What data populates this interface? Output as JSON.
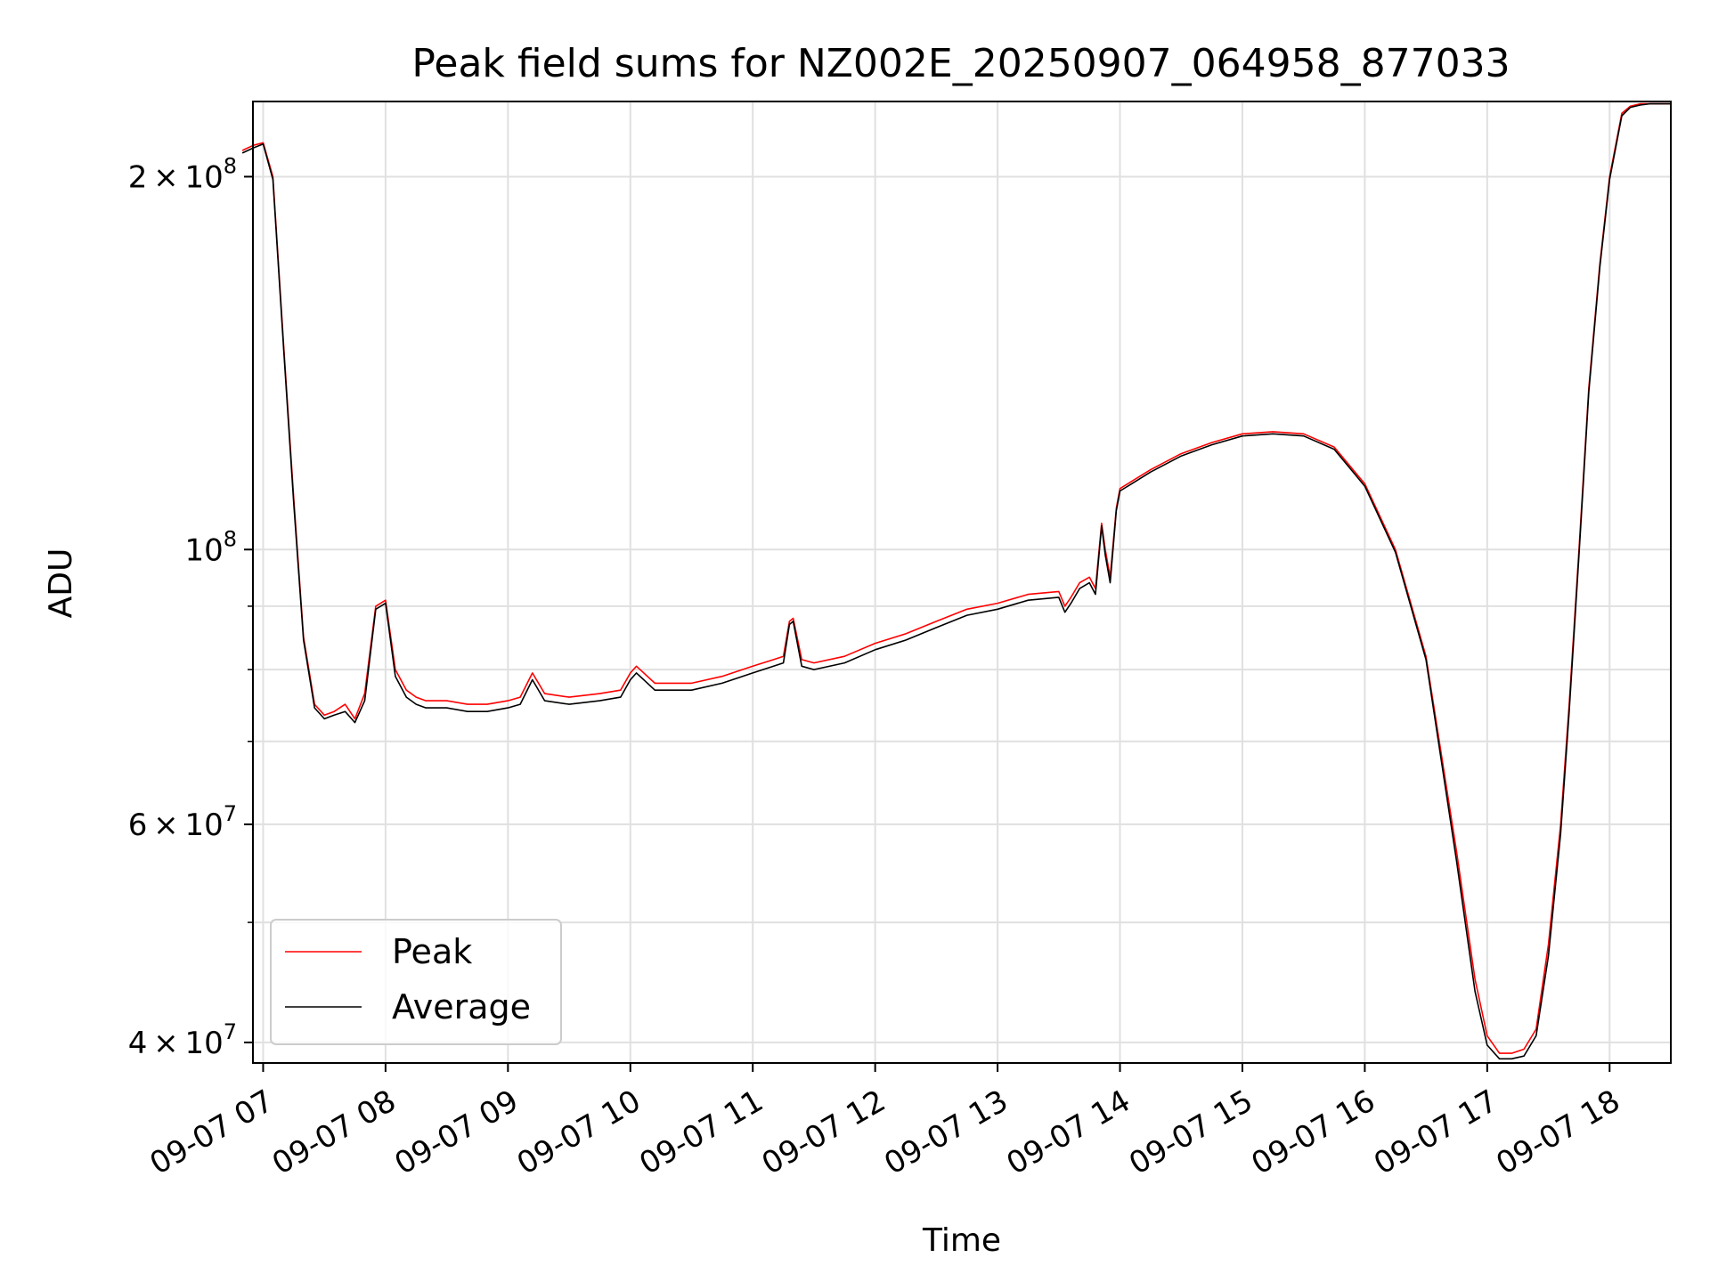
{
  "chart_data": {
    "type": "line",
    "title": "Peak field sums for NZ002E_20250907_064958_877033",
    "xlabel": "Time",
    "ylabel": "ADU",
    "y_scale": "log",
    "xlim": [
      "09-07 06:55",
      "09-07 18:30"
    ],
    "ylim": [
      38500000,
      230000000
    ],
    "grid": true,
    "legend_position": "lower-left",
    "x_ticks": [
      "09-07 07",
      "09-07 08",
      "09-07 09",
      "09-07 10",
      "09-07 11",
      "09-07 12",
      "09-07 13",
      "09-07 14",
      "09-07 15",
      "09-07 16",
      "09-07 17",
      "09-07 18"
    ],
    "x_tick_hours": [
      7,
      8,
      9,
      10,
      11,
      12,
      13,
      14,
      15,
      16,
      17,
      18
    ],
    "y_ticks": [
      {
        "value": 200000000,
        "mantissa": "2",
        "exponent": "8"
      },
      {
        "value": 100000000,
        "mantissa": "",
        "exponent": "8"
      },
      {
        "value": 60000000,
        "mantissa": "6",
        "exponent": "7"
      },
      {
        "value": 40000000,
        "mantissa": "4",
        "exponent": "7"
      }
    ],
    "y_minor_gridlines": [
      50000000,
      70000000,
      80000000,
      90000000
    ],
    "x_unit": "hour of day (09-07)",
    "series": [
      {
        "name": "Peak",
        "color": "#ff0000",
        "x": [
          6.83,
          6.92,
          7.0,
          7.08,
          7.17,
          7.25,
          7.33,
          7.42,
          7.5,
          7.58,
          7.67,
          7.75,
          7.83,
          7.92,
          8.0,
          8.08,
          8.17,
          8.25,
          8.33,
          8.5,
          8.67,
          8.83,
          9.0,
          9.1,
          9.2,
          9.3,
          9.5,
          9.75,
          9.92,
          10.0,
          10.05,
          10.2,
          10.5,
          10.75,
          11.0,
          11.17,
          11.25,
          11.3,
          11.33,
          11.4,
          11.5,
          11.75,
          12.0,
          12.25,
          12.5,
          12.75,
          13.0,
          13.25,
          13.5,
          13.55,
          13.6,
          13.67,
          13.75,
          13.8,
          13.85,
          13.88,
          13.92,
          13.97,
          14.0,
          14.25,
          14.5,
          14.75,
          15.0,
          15.25,
          15.5,
          15.75,
          16.0,
          16.25,
          16.5,
          16.75,
          16.9,
          17.0,
          17.1,
          17.2,
          17.3,
          17.4,
          17.5,
          17.6,
          17.67,
          17.75,
          17.83,
          17.92,
          18.0,
          18.1,
          18.17,
          18.25,
          18.33,
          18.5
        ],
        "values": [
          210000000,
          212000000,
          213000000,
          200000000,
          145000000,
          110000000,
          85000000,
          75000000,
          73500000,
          74000000,
          75000000,
          73000000,
          76500000,
          90000000,
          91000000,
          80000000,
          77000000,
          76000000,
          75500000,
          75500000,
          75000000,
          75000000,
          75500000,
          76000000,
          79500000,
          76500000,
          76000000,
          76500000,
          77000000,
          79500000,
          80500000,
          78000000,
          78000000,
          79000000,
          80500000,
          81500000,
          82000000,
          87500000,
          88000000,
          81500000,
          81000000,
          82000000,
          84000000,
          85500000,
          87500000,
          89500000,
          90500000,
          92000000,
          92500000,
          90000000,
          91500000,
          94000000,
          95000000,
          93000000,
          105000000,
          100000000,
          95000000,
          108000000,
          112000000,
          116000000,
          119500000,
          122000000,
          124000000,
          124500000,
          124000000,
          121000000,
          113000000,
          100000000,
          82000000,
          57000000,
          45000000,
          40500000,
          39200000,
          39200000,
          39500000,
          41000000,
          48000000,
          60000000,
          75000000,
          100000000,
          135000000,
          170000000,
          200000000,
          225000000,
          228000000,
          229000000,
          229000000,
          229000000
        ]
      },
      {
        "name": "Average",
        "color": "#000000",
        "x": [
          6.83,
          6.92,
          7.0,
          7.08,
          7.17,
          7.25,
          7.33,
          7.42,
          7.5,
          7.58,
          7.67,
          7.75,
          7.83,
          7.92,
          8.0,
          8.08,
          8.17,
          8.25,
          8.33,
          8.5,
          8.67,
          8.83,
          9.0,
          9.1,
          9.2,
          9.3,
          9.5,
          9.75,
          9.92,
          10.0,
          10.05,
          10.2,
          10.5,
          10.75,
          11.0,
          11.17,
          11.25,
          11.3,
          11.33,
          11.4,
          11.5,
          11.75,
          12.0,
          12.25,
          12.5,
          12.75,
          13.0,
          13.25,
          13.5,
          13.55,
          13.6,
          13.67,
          13.75,
          13.8,
          13.85,
          13.88,
          13.92,
          13.97,
          14.0,
          14.25,
          14.5,
          14.75,
          15.0,
          15.25,
          15.5,
          15.75,
          16.0,
          16.25,
          16.5,
          16.75,
          16.9,
          17.0,
          17.1,
          17.2,
          17.3,
          17.4,
          17.5,
          17.6,
          17.67,
          17.75,
          17.83,
          17.92,
          18.0,
          18.1,
          18.17,
          18.25,
          18.33,
          18.5
        ],
        "values": [
          209000000,
          211000000,
          212500000,
          199000000,
          144000000,
          109000000,
          84500000,
          74500000,
          73000000,
          73500000,
          74000000,
          72500000,
          75500000,
          89500000,
          90500000,
          79000000,
          76000000,
          75000000,
          74500000,
          74500000,
          74000000,
          74000000,
          74500000,
          75000000,
          78500000,
          75500000,
          75000000,
          75500000,
          76000000,
          78500000,
          79500000,
          77000000,
          77000000,
          78000000,
          79500000,
          80500000,
          81000000,
          87000000,
          87500000,
          80500000,
          80000000,
          81000000,
          83000000,
          84500000,
          86500000,
          88500000,
          89500000,
          91000000,
          91500000,
          89000000,
          90500000,
          93000000,
          94000000,
          92000000,
          104500000,
          99000000,
          94000000,
          107500000,
          111500000,
          115500000,
          119000000,
          121500000,
          123500000,
          124000000,
          123500000,
          120500000,
          112500000,
          99500000,
          81500000,
          56000000,
          44000000,
          39800000,
          38800000,
          38800000,
          39000000,
          40500000,
          47000000,
          59000000,
          74000000,
          99000000,
          134000000,
          169000000,
          199000000,
          224000000,
          227500000,
          228500000,
          229000000,
          229000000
        ]
      }
    ]
  }
}
